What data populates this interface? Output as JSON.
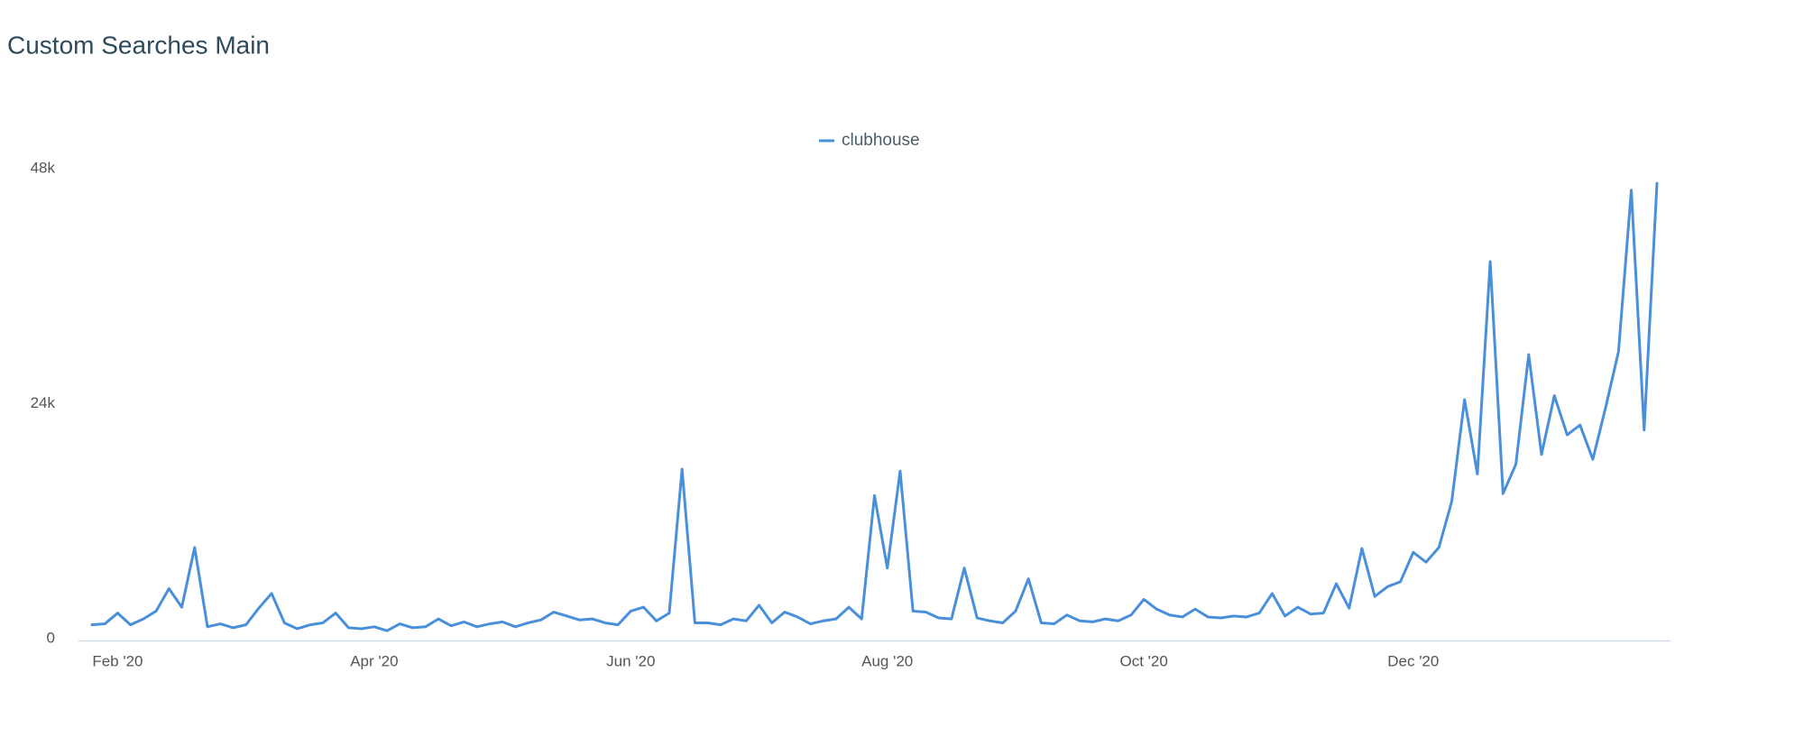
{
  "chart_data": {
    "type": "line",
    "title": "Custom Searches Main",
    "categories": [
      null,
      null,
      "Feb '20",
      null,
      null,
      null,
      null,
      null,
      null,
      null,
      null,
      null,
      null,
      null,
      null,
      null,
      null,
      null,
      null,
      null,
      null,
      null,
      "Apr '20",
      null,
      null,
      null,
      null,
      null,
      null,
      null,
      null,
      null,
      null,
      null,
      null,
      null,
      null,
      null,
      null,
      null,
      null,
      null,
      "Jun '20",
      null,
      null,
      null,
      null,
      null,
      null,
      null,
      null,
      null,
      null,
      null,
      null,
      null,
      null,
      null,
      null,
      null,
      null,
      null,
      "Aug '20",
      null,
      null,
      null,
      null,
      null,
      null,
      null,
      null,
      null,
      null,
      null,
      null,
      null,
      null,
      null,
      null,
      null,
      null,
      null,
      "Oct '20",
      null,
      null,
      null,
      null,
      null,
      null,
      null,
      null,
      null,
      null,
      null,
      null,
      null,
      null,
      null,
      null,
      null,
      null,
      null,
      null,
      "Dec '20",
      null,
      null,
      null,
      null,
      null,
      null,
      null,
      null,
      null,
      null,
      null,
      null,
      null,
      null,
      null,
      null,
      null,
      null,
      null
    ],
    "series": [
      {
        "name": "clubhouse",
        "color": "#4a8fd9",
        "values": [
          1600,
          1700,
          2800,
          1600,
          2200,
          3000,
          5300,
          3400,
          9500,
          1400,
          1700,
          1300,
          1600,
          3300,
          4800,
          1800,
          1200,
          1600,
          1800,
          2800,
          1300,
          1200,
          1400,
          1000,
          1700,
          1300,
          1400,
          2200,
          1500,
          1900,
          1400,
          1700,
          1900,
          1400,
          1800,
          2100,
          2900,
          2500,
          2100,
          2200,
          1800,
          1600,
          3000,
          3400,
          2000,
          2800,
          17500,
          1800,
          1800,
          1600,
          2200,
          2000,
          3600,
          1800,
          2900,
          2400,
          1700,
          2000,
          2200,
          3400,
          2200,
          14800,
          7400,
          17300,
          3000,
          2900,
          2300,
          2200,
          7400,
          2300,
          2000,
          1800,
          3000,
          6300,
          1800,
          1700,
          2600,
          2000,
          1900,
          2200,
          2000,
          2600,
          4200,
          3200,
          2600,
          2400,
          3200,
          2400,
          2300,
          2500,
          2400,
          2800,
          4800,
          2500,
          3400,
          2700,
          2800,
          5800,
          3300,
          9400,
          4500,
          5500,
          6000,
          9000,
          8000,
          9500,
          14200,
          24600,
          17000,
          38700,
          15000,
          18000,
          29200,
          19000,
          25000,
          21000,
          22000,
          18500,
          23800,
          29500,
          46000,
          21500,
          46700
        ]
      }
    ],
    "ylim": [
      0,
      48000
    ],
    "yticks": [
      0,
      {
        "value": 24000,
        "label": "24k"
      },
      {
        "value": 48000,
        "label": "48k"
      }
    ],
    "grid": false,
    "legend": "top"
  }
}
